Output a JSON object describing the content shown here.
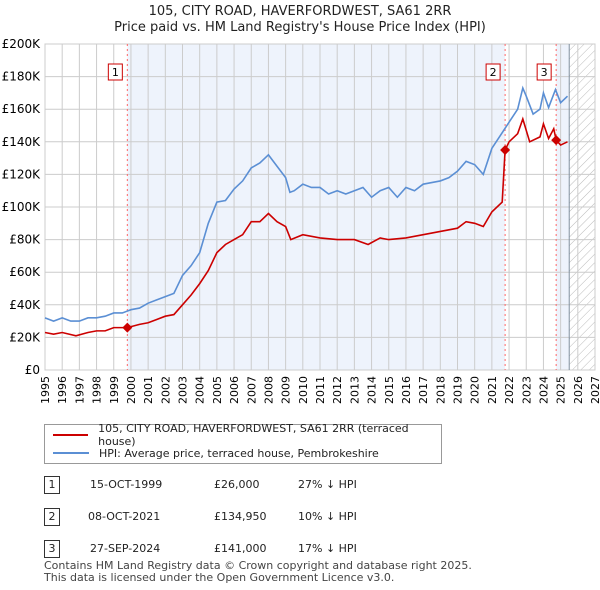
{
  "chart_data": {
    "type": "line",
    "title": "105, CITY ROAD, HAVERFORDWEST, SA61 2RR",
    "subtitle": "Price paid vs. HM Land Registry's House Price Index (HPI)",
    "xlim": [
      1995,
      2027
    ],
    "ylim": [
      0,
      200000
    ],
    "yticks": [
      0,
      20000,
      40000,
      60000,
      80000,
      100000,
      120000,
      140000,
      160000,
      180000,
      200000
    ],
    "ytick_labels": [
      "£0",
      "£20K",
      "£40K",
      "£60K",
      "£80K",
      "£100K",
      "£120K",
      "£140K",
      "£160K",
      "£180K",
      "£200K"
    ],
    "xticks": [
      "1995",
      "1996",
      "1997",
      "1998",
      "1999",
      "2000",
      "2001",
      "2002",
      "2003",
      "2004",
      "2005",
      "2006",
      "2007",
      "2008",
      "2009",
      "2010",
      "2011",
      "2012",
      "2013",
      "2014",
      "2015",
      "2016",
      "2017",
      "2018",
      "2019",
      "2020",
      "2021",
      "2022",
      "2023",
      "2024",
      "2025",
      "2026",
      "2027"
    ],
    "grid": true,
    "colors": {
      "property": "#cc0000",
      "hpi": "#5b8fd4",
      "shade": "#eef3fc"
    },
    "shaded_ranges": [
      [
        1999.79,
        2021.77
      ],
      [
        2024.74,
        2025.5
      ]
    ],
    "forecast_hatch_from": 2025.5,
    "series": [
      {
        "name": "105, CITY ROAD, HAVERFORDWEST, SA61 2RR (terraced house)",
        "color": "#cc0000",
        "x": [
          1995,
          1995.5,
          1996,
          1996.8,
          1997.5,
          1998,
          1998.5,
          1999,
          1999.79,
          2000.5,
          2001,
          2001.5,
          2002,
          2002.5,
          2003,
          2003.5,
          2004,
          2004.5,
          2005,
          2005.5,
          2006,
          2006.5,
          2007,
          2007.5,
          2008,
          2008.5,
          2009,
          2009.3,
          2010,
          2011,
          2012,
          2013,
          2013.8,
          2014.5,
          2015,
          2016,
          2017,
          2018,
          2019,
          2019.5,
          2020,
          2020.5,
          2021,
          2021.6,
          2021.77,
          2022,
          2022.5,
          2022.8,
          2023.2,
          2023.8,
          2024,
          2024.3,
          2024.6,
          2024.74,
          2025,
          2025.4
        ],
        "y": [
          23000,
          22000,
          23000,
          21000,
          23000,
          24000,
          24000,
          26000,
          26000,
          28000,
          29000,
          31000,
          33000,
          34000,
          40000,
          46000,
          53000,
          61000,
          72000,
          77000,
          80000,
          83000,
          91000,
          91000,
          96000,
          91000,
          88000,
          80000,
          83000,
          81000,
          80000,
          80000,
          77000,
          81000,
          80000,
          81000,
          83000,
          85000,
          87000,
          91000,
          90000,
          88000,
          97000,
          103000,
          134950,
          140000,
          145000,
          154000,
          140000,
          143000,
          151000,
          142000,
          148000,
          141000,
          138000,
          140000
        ]
      },
      {
        "name": "HPI: Average price, terraced house, Pembrokeshire",
        "color": "#5b8fd4",
        "x": [
          1995,
          1995.5,
          1996,
          1996.5,
          1997,
          1997.5,
          1998,
          1998.5,
          1999,
          1999.5,
          2000,
          2000.5,
          2001,
          2001.5,
          2002,
          2002.5,
          2003,
          2003.5,
          2004,
          2004.5,
          2005,
          2005.5,
          2006,
          2006.5,
          2007,
          2007.5,
          2008,
          2008.5,
          2009,
          2009.25,
          2009.5,
          2010,
          2010.5,
          2011,
          2011.5,
          2012,
          2012.5,
          2013,
          2013.5,
          2014,
          2014.5,
          2015,
          2015.5,
          2016,
          2016.5,
          2017,
          2017.5,
          2018,
          2018.5,
          2019,
          2019.5,
          2020,
          2020.5,
          2021,
          2021.5,
          2022,
          2022.5,
          2022.8,
          2023,
          2023.4,
          2023.8,
          2024,
          2024.3,
          2024.7,
          2025,
          2025.4
        ],
        "y": [
          32000,
          30000,
          32000,
          30000,
          30000,
          32000,
          32000,
          33000,
          35000,
          35000,
          37000,
          38000,
          41000,
          43000,
          45000,
          47000,
          58000,
          64000,
          72000,
          90000,
          103000,
          104000,
          111000,
          116000,
          124000,
          127000,
          132000,
          125000,
          118000,
          109000,
          110000,
          114000,
          112000,
          112000,
          108000,
          110000,
          108000,
          110000,
          112000,
          106000,
          110000,
          112000,
          106000,
          112000,
          110000,
          114000,
          115000,
          116000,
          118000,
          122000,
          128000,
          126000,
          120000,
          136000,
          144000,
          152000,
          160000,
          173000,
          168000,
          157000,
          160000,
          170000,
          161000,
          172000,
          164000,
          168000
        ]
      }
    ],
    "sales": [
      {
        "label": "1",
        "x": 1999.79,
        "y": 26000
      },
      {
        "label": "2",
        "x": 2021.77,
        "y": 134950
      },
      {
        "label": "3",
        "x": 2024.74,
        "y": 141000
      }
    ]
  },
  "legend": {
    "property": "105, CITY ROAD, HAVERFORDWEST, SA61 2RR (terraced house)",
    "hpi": "HPI: Average price, terraced house, Pembrokeshire"
  },
  "table": [
    {
      "num": "1",
      "date": "15-OCT-1999",
      "price": "£26,000",
      "hpi": "27% ↓ HPI"
    },
    {
      "num": "2",
      "date": "08-OCT-2021",
      "price": "£134,950",
      "hpi": "10% ↓ HPI"
    },
    {
      "num": "3",
      "date": "27-SEP-2024",
      "price": "£141,000",
      "hpi": "17% ↓ HPI"
    }
  ],
  "footer": [
    "Contains HM Land Registry data © Crown copyright and database right 2025.",
    "This data is licensed under the Open Government Licence v3.0."
  ]
}
